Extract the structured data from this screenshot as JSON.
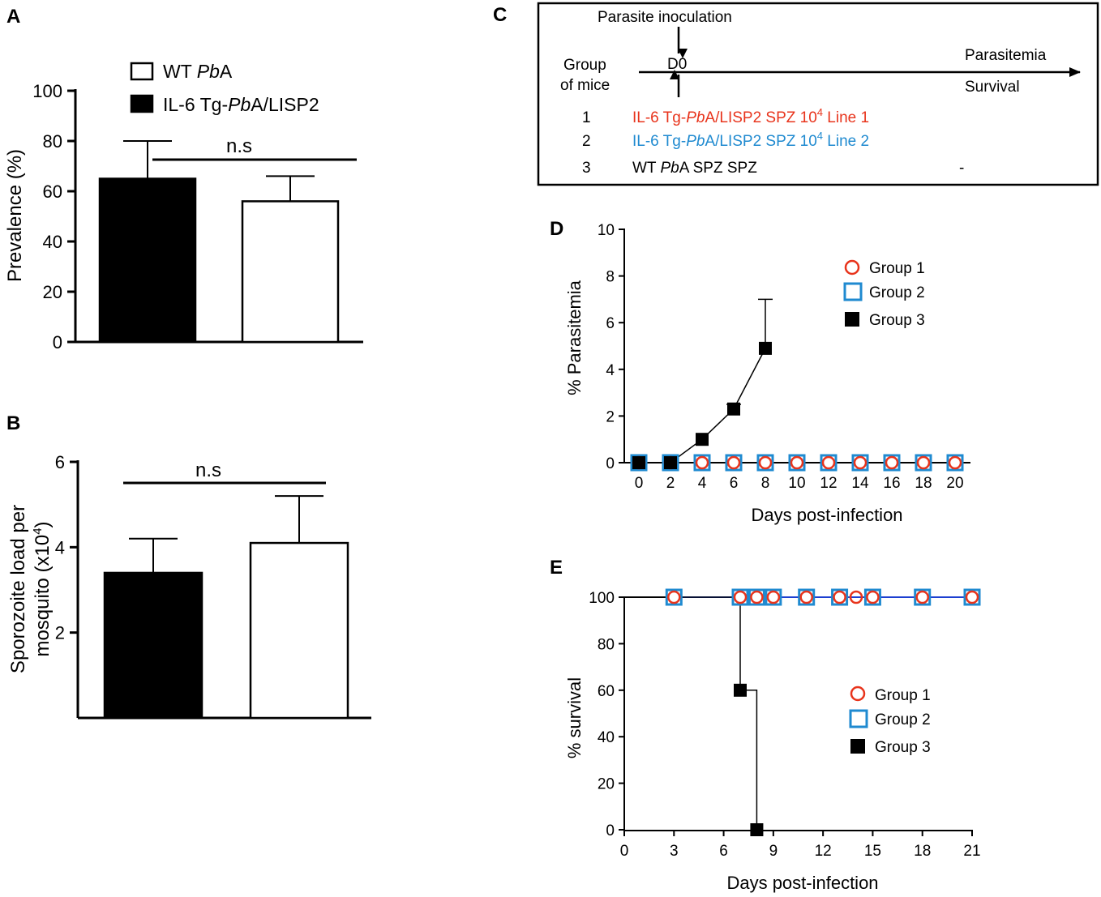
{
  "chart_data": [
    {
      "panel": "A",
      "type": "bar",
      "categories": [
        "IL-6 Tg-PbA/LISP2",
        "WT PbA"
      ],
      "values": [
        65,
        56
      ],
      "errors": [
        15,
        10
      ],
      "fills": [
        "#000000",
        "#ffffff"
      ],
      "ylabel": "Prevalence (%)",
      "ylim": [
        0,
        100
      ],
      "yticks": [
        "0",
        "20",
        "40",
        "60",
        "80",
        "100"
      ],
      "significance": "n.s",
      "legend": [
        {
          "pre": "WT ",
          "ital": "Pb",
          "post": "A",
          "fill": "#ffffff"
        },
        {
          "pre": "IL-6 Tg-",
          "ital": "Pb",
          "post": "A/LISP2",
          "fill": "#000000"
        }
      ]
    },
    {
      "panel": "B",
      "type": "bar",
      "categories": [
        "IL-6 Tg-PbA/LISP2",
        "WT PbA"
      ],
      "values": [
        3.4,
        4.1
      ],
      "errors": [
        0.8,
        1.1
      ],
      "fills": [
        "#000000",
        "#ffffff"
      ],
      "ylabel_line1": "Sporozoite load per",
      "ylabel_line2_pre": "mosquito (x10",
      "ylabel_line2_sup": "4",
      "ylabel_line2_post": ")",
      "ylim": [
        0,
        6
      ],
      "yticks": [
        "2",
        "4",
        "6"
      ],
      "significance": "n.s"
    },
    {
      "panel": "D",
      "type": "line",
      "xlabel": "Days post-infection",
      "ylabel": "% Parasitemia",
      "xticks": [
        "0",
        "2",
        "4",
        "6",
        "8",
        "10",
        "12",
        "14",
        "16",
        "18",
        "20"
      ],
      "yticks": [
        "0",
        "2",
        "4",
        "6",
        "8",
        "10"
      ],
      "xlim": [
        0,
        20
      ],
      "ylim": [
        0,
        10
      ],
      "series": [
        {
          "name": "Group 1",
          "marker": "circle",
          "color": "#e8341c",
          "x": [
            0,
            2,
            4,
            6,
            8,
            10,
            12,
            14,
            16,
            18,
            20
          ],
          "y": [
            0,
            0,
            0,
            0,
            0,
            0,
            0,
            0,
            0,
            0,
            0
          ]
        },
        {
          "name": "Group 2",
          "marker": "square",
          "color": "#1f8ad0",
          "x": [
            0,
            2,
            4,
            6,
            8,
            10,
            12,
            14,
            16,
            18,
            20
          ],
          "y": [
            0,
            0,
            0,
            0,
            0,
            0,
            0,
            0,
            0,
            0,
            0
          ]
        },
        {
          "name": "Group 3",
          "marker": "filled-square",
          "color": "#000000",
          "x": [
            0,
            2,
            4,
            6,
            8
          ],
          "y": [
            0,
            0,
            1,
            2.3,
            4.9
          ],
          "err": [
            0,
            0,
            0,
            0.2,
            2.1
          ]
        }
      ]
    },
    {
      "panel": "E",
      "type": "line",
      "xlabel": "Days post-infection",
      "ylabel": "% survival",
      "xticks": [
        "0",
        "3",
        "6",
        "9",
        "12",
        "15",
        "18",
        "21"
      ],
      "yticks": [
        "0",
        "20",
        "40",
        "60",
        "80",
        "100"
      ],
      "xlim": [
        0,
        21
      ],
      "ylim": [
        0,
        100
      ],
      "series": [
        {
          "name": "Group 1",
          "marker": "circle",
          "color": "#e8341c",
          "x": [
            3,
            7,
            8,
            9,
            11,
            13,
            14,
            15,
            18,
            21
          ],
          "y": [
            100,
            100,
            100,
            100,
            100,
            100,
            100,
            100,
            100,
            100
          ]
        },
        {
          "name": "Group 2",
          "marker": "square",
          "color": "#1f8ad0",
          "x": [
            3,
            7,
            8,
            9,
            11,
            13,
            15,
            18,
            21
          ],
          "y": [
            100,
            100,
            100,
            100,
            100,
            100,
            100,
            100,
            100
          ]
        },
        {
          "name": "Group 3",
          "marker": "filled-square",
          "color": "#000000",
          "x": [
            0,
            7,
            8
          ],
          "y": [
            100,
            60,
            0
          ]
        }
      ]
    }
  ],
  "panel_labels": {
    "a": "A",
    "b": "B",
    "c": "C",
    "d": "D",
    "e": "E"
  },
  "diagram_c": {
    "inoculation": "Parasite inoculation",
    "day0": "D0",
    "group_label_1": "Group",
    "group_label_2": "of mice",
    "parasitemia": "Parasitemia",
    "survival": "Survival",
    "rows": [
      {
        "num": "1",
        "pre": "IL-6 Tg-",
        "ital": "Pb",
        "post": "A/LISP2 SPZ  10",
        "sup": "4",
        "tail": " Line 1",
        "color": "#e8341c"
      },
      {
        "num": "2",
        "pre": "IL-6 Tg-",
        "ital": "Pb",
        "post": "A/LISP2 SPZ 10",
        "sup": "4",
        "tail": "  Line 2",
        "color": "#1f8ad0"
      },
      {
        "num": "3",
        "pre": "WT ",
        "ital": "Pb",
        "post": "A SPZ SPZ",
        "sup": "",
        "tail": "",
        "color": "#000000"
      }
    ],
    "row3_dash": "-"
  }
}
